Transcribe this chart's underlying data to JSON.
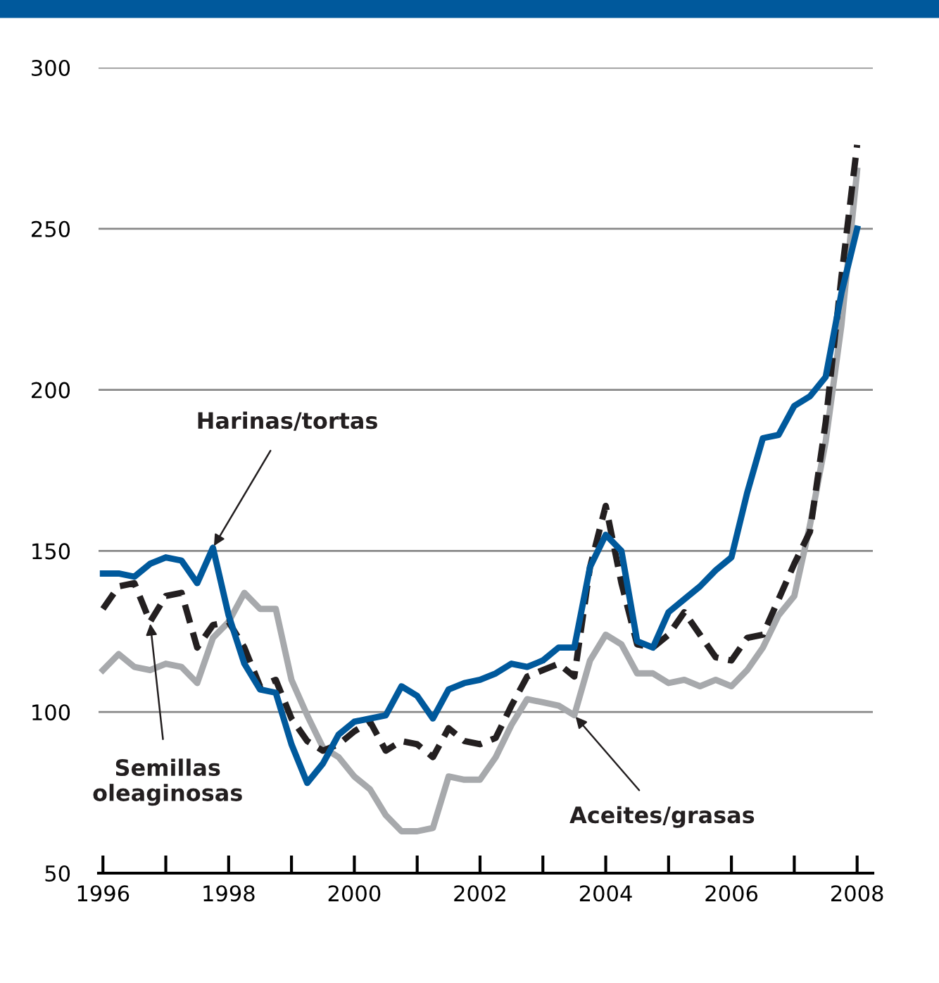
{
  "chart_data": {
    "type": "line",
    "x": [
      1996,
      1996.25,
      1996.5,
      1996.75,
      1997,
      1997.25,
      1997.5,
      1997.75,
      1998,
      1998.25,
      1998.5,
      1998.75,
      1999,
      1999.25,
      1999.5,
      1999.75,
      2000,
      2000.25,
      2000.5,
      2000.75,
      2001,
      2001.25,
      2001.5,
      2001.75,
      2002,
      2002.25,
      2002.5,
      2002.75,
      2003,
      2003.25,
      2003.5,
      2003.75,
      2004,
      2004.25,
      2004.5,
      2004.75,
      2005,
      2005.25,
      2005.5,
      2005.75,
      2006,
      2006.25,
      2006.5,
      2006.75,
      2007,
      2007.25,
      2007.5,
      2007.75,
      2008
    ],
    "series": [
      {
        "color": "#a7a9ac",
        "line_style": "solid",
        "values": [
          113,
          118,
          114,
          113,
          115,
          114,
          109,
          123,
          128,
          137,
          132,
          132,
          110,
          99,
          89,
          86,
          80,
          76,
          68,
          63,
          63,
          64,
          80,
          79,
          79,
          86,
          96,
          104,
          103,
          102,
          99,
          116,
          124,
          121,
          112,
          112,
          109,
          110,
          108,
          110,
          108,
          113,
          120,
          130,
          136,
          158,
          184,
          220,
          268
        ]
      },
      {
        "color": "#231f20",
        "line_style": "dashed",
        "values": [
          132,
          139,
          140,
          128,
          136,
          137,
          120,
          127,
          128,
          120,
          108,
          110,
          98,
          91,
          88,
          90,
          94,
          97,
          88,
          91,
          90,
          86,
          95,
          91,
          90,
          92,
          102,
          111,
          113,
          115,
          111,
          145,
          164,
          140,
          121,
          120,
          124,
          131,
          124,
          117,
          116,
          123,
          124,
          135,
          146,
          156,
          190,
          235,
          276
        ]
      },
      {
        "color": "#00599c",
        "line_style": "solid",
        "values": [
          143,
          143,
          142,
          146,
          148,
          147,
          140,
          151,
          130,
          115,
          107,
          106,
          90,
          78,
          84,
          93,
          97,
          98,
          99,
          108,
          105,
          98,
          107,
          109,
          110,
          112,
          115,
          114,
          116,
          120,
          120,
          145,
          155,
          150,
          122,
          120,
          131,
          135,
          139,
          144,
          148,
          168,
          185,
          186,
          195,
          198,
          204,
          230,
          250
        ]
      }
    ],
    "xlim": [
      1995.93,
      2008.25
    ],
    "xticks": [
      1996,
      {
        "value": 1997,
        "label": null
      },
      1998,
      {
        "value": 1999,
        "label": null
      },
      2000,
      {
        "value": 2001,
        "label": null
      },
      2002,
      {
        "value": 2003,
        "label": null
      },
      2004,
      {
        "value": 2005,
        "label": null
      },
      2006,
      {
        "value": 2007,
        "label": null
      },
      2008
    ],
    "ylim": [
      50,
      300
    ],
    "yticks": [
      50,
      100,
      150,
      200,
      250,
      300
    ],
    "grid": "y",
    "legend": false,
    "annotations": [
      {
        "text": "Harinas/tortas",
        "x": 1997.75,
        "y": 151
      },
      {
        "text": "Semillas\noleaginosas",
        "x": 1996.75,
        "y": 128
      },
      {
        "text": "Aceites/grasas",
        "x": 2003.5,
        "y": 99
      }
    ]
  }
}
